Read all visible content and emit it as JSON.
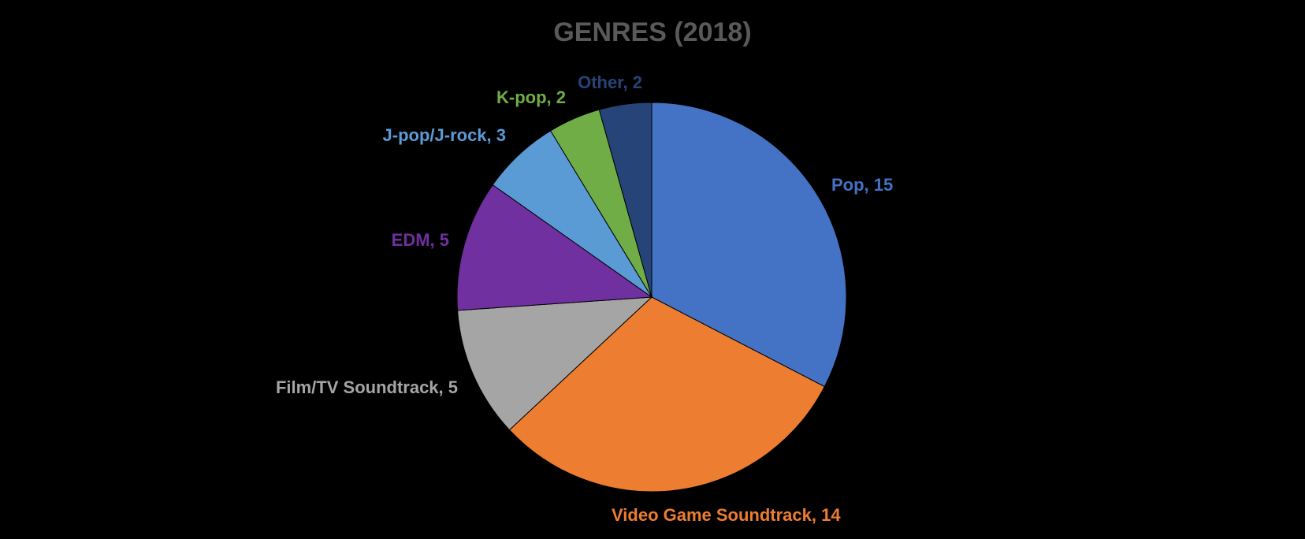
{
  "chart_data": {
    "type": "pie",
    "title": "GENRES (2018)",
    "slices": [
      {
        "label": "Pop",
        "value": 15,
        "color": "#4472C4"
      },
      {
        "label": "Video Game Soundtrack",
        "value": 14,
        "color": "#ED7D31"
      },
      {
        "label": "Film/TV Soundtrack",
        "value": 5,
        "color": "#A5A5A5"
      },
      {
        "label": "EDM",
        "value": 5,
        "color": "#7030A0"
      },
      {
        "label": "J-pop/J-rock",
        "value": 3,
        "color": "#5B9BD5"
      },
      {
        "label": "K-pop",
        "value": 2,
        "color": "#70AD47"
      },
      {
        "label": "Other",
        "value": 2,
        "color": "#264478"
      }
    ],
    "start_angle": "12 o'clock",
    "direction": "clockwise",
    "legend": "none",
    "data_labels": "category, value"
  }
}
